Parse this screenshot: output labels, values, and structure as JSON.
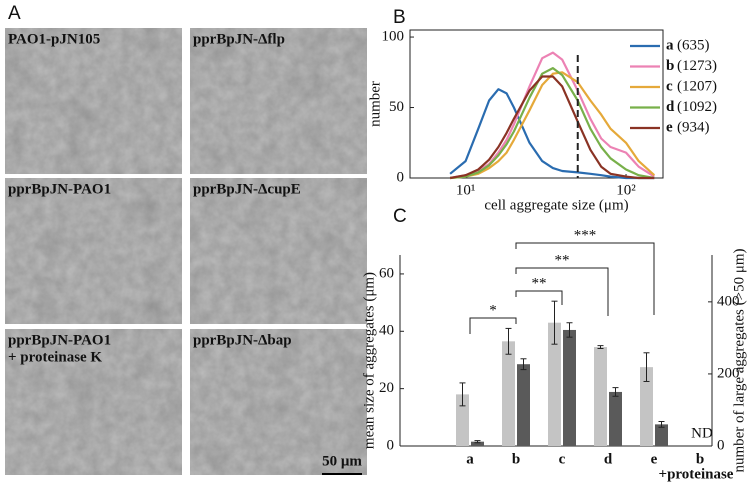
{
  "panel_a": {
    "panel_label": "A",
    "images": [
      {
        "lines": [
          "PAO1-pJN105"
        ]
      },
      {
        "lines": [
          "pprBpJN-Δflp"
        ]
      },
      {
        "lines": [
          "pprBpJN-PAO1"
        ]
      },
      {
        "lines": [
          "pprBpJN-ΔcupE"
        ]
      },
      {
        "lines": [
          "pprBpJN-PAO1",
          "+ proteinase K"
        ]
      },
      {
        "lines": [
          "pprBpJN-Δbap"
        ]
      }
    ],
    "scale_bar": "50 μm"
  },
  "chart_data": [
    {
      "type": "line",
      "panel_label": "B",
      "xlabel": "cell aggregate size (μm)",
      "ylabel": "number",
      "log_x": true,
      "x": [
        8,
        10,
        12,
        14,
        16,
        18,
        20,
        25,
        30,
        35,
        40,
        50,
        60,
        70,
        80,
        100,
        120,
        150
      ],
      "xlim": [
        4.5,
        170
      ],
      "xticks": [
        {
          "value": 10,
          "label": "10¹"
        },
        {
          "value": 100,
          "label": "10²"
        }
      ],
      "ylim": [
        0,
        105
      ],
      "yticks": [
        0,
        50,
        100
      ],
      "threshold_line": 50,
      "legend": "upper right",
      "series": [
        {
          "name": "a",
          "n_label": "(635)",
          "color": "#2a6cb0",
          "values": [
            3,
            12,
            35,
            55,
            63,
            60,
            50,
            25,
            12,
            7,
            5,
            4,
            3,
            2,
            1,
            0,
            0,
            0
          ]
        },
        {
          "name": "b",
          "n_label": "(1273)",
          "color": "#ec82b4",
          "values": [
            0,
            2,
            5,
            10,
            18,
            27,
            38,
            65,
            85,
            89,
            84,
            62,
            42,
            28,
            22,
            18,
            8,
            1
          ]
        },
        {
          "name": "c",
          "n_label": "(1207)",
          "color": "#e5a93a",
          "values": [
            0,
            1,
            3,
            7,
            12,
            18,
            27,
            48,
            66,
            74,
            75,
            68,
            55,
            45,
            35,
            25,
            12,
            2
          ]
        },
        {
          "name": "d",
          "n_label": "(1092)",
          "color": "#78b04a",
          "values": [
            0,
            1,
            4,
            9,
            16,
            24,
            33,
            57,
            74,
            78,
            73,
            55,
            35,
            22,
            14,
            6,
            2,
            0
          ]
        },
        {
          "name": "e",
          "n_label": "(934)",
          "color": "#8a3324",
          "values": [
            0,
            2,
            6,
            13,
            22,
            32,
            42,
            62,
            72,
            72,
            65,
            40,
            20,
            8,
            3,
            1,
            0,
            0
          ]
        }
      ]
    },
    {
      "type": "bar",
      "panel_label": "C",
      "ylabel": "mean size of aggregates (μm)",
      "y2label": "number of large aggregates (>50 μm)",
      "categories": [
        "a",
        "b",
        "c",
        "d",
        "e",
        "b"
      ],
      "category_sublabels": [
        null,
        null,
        null,
        null,
        null,
        "+proteinase"
      ],
      "ylim": [
        0,
        66.6
      ],
      "yticks": [
        0,
        20,
        40,
        60
      ],
      "y2lim": [
        0,
        530
      ],
      "y2ticks": [
        0,
        200,
        400
      ],
      "series": [
        {
          "color": "#c4c4c4",
          "values": [
            18,
            36.5,
            43,
            34.5,
            27.5,
            null
          ],
          "errors": [
            4,
            4.5,
            7.5,
            0.5,
            5,
            null
          ]
        },
        {
          "color": "#5a5a5a",
          "axis": "y2",
          "values": [
            12,
            227,
            322,
            150,
            60,
            null
          ],
          "errors": [
            3,
            15,
            20,
            12,
            8,
            null
          ]
        }
      ],
      "annotations": [
        {
          "text": "ND",
          "category": 5
        }
      ],
      "brackets": [
        {
          "label": "*",
          "from": 0,
          "to": 1
        },
        {
          "label": "**",
          "from": 1,
          "to": 2
        },
        {
          "label": "**",
          "from": 1,
          "to": 3
        },
        {
          "label": "***",
          "from": 1,
          "to": 4
        }
      ]
    }
  ]
}
